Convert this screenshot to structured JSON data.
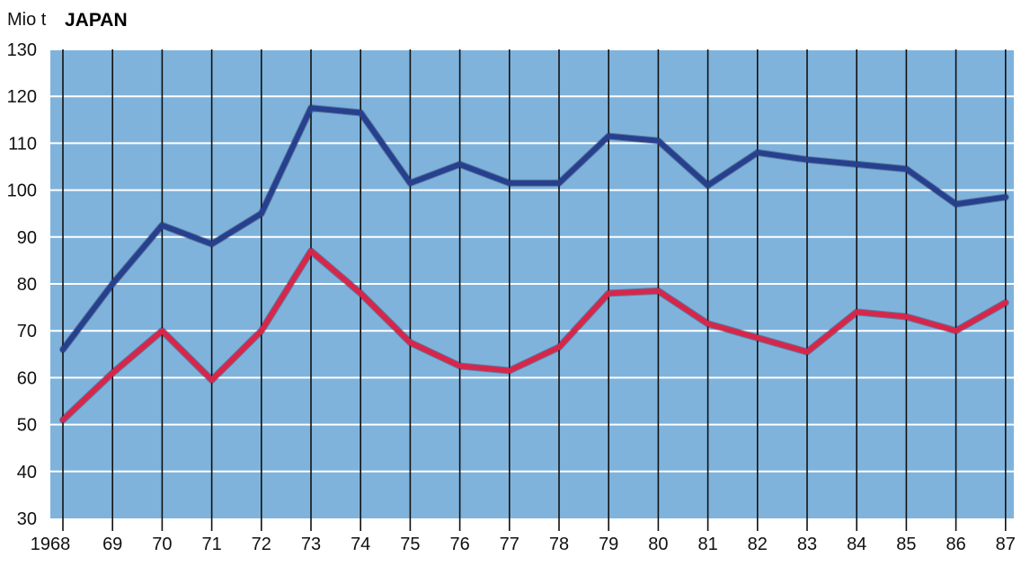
{
  "chart_data": {
    "type": "line",
    "title": "JAPAN",
    "ylabel": "Mio t",
    "xlabel": "",
    "x": [
      "1968",
      "69",
      "70",
      "71",
      "72",
      "73",
      "74",
      "75",
      "76",
      "77",
      "78",
      "79",
      "80",
      "81",
      "82",
      "83",
      "84",
      "85",
      "86",
      "87"
    ],
    "yticks": [
      30,
      40,
      50,
      60,
      70,
      80,
      90,
      100,
      110,
      120,
      130
    ],
    "ylim": [
      30,
      130
    ],
    "grid": true,
    "series": [
      {
        "values": [
          66,
          80,
          92.5,
          88.5,
          95,
          117.5,
          116.5,
          101.5,
          105.5,
          101.5,
          101.5,
          111.5,
          110.5,
          101,
          108,
          106.5,
          105.5,
          104.5,
          97,
          98.5
        ],
        "color": "#27408e"
      },
      {
        "values": [
          51,
          61,
          70,
          59.5,
          70,
          87,
          78,
          67.5,
          62.5,
          61.5,
          66.5,
          78,
          78.5,
          71.5,
          68.5,
          65.5,
          74,
          73,
          70,
          76
        ],
        "color": "#d6274b"
      }
    ],
    "colors": {
      "plot_background": "#7fb3dc",
      "gridline": "#ffffff",
      "vertical_line": "#111111"
    }
  }
}
